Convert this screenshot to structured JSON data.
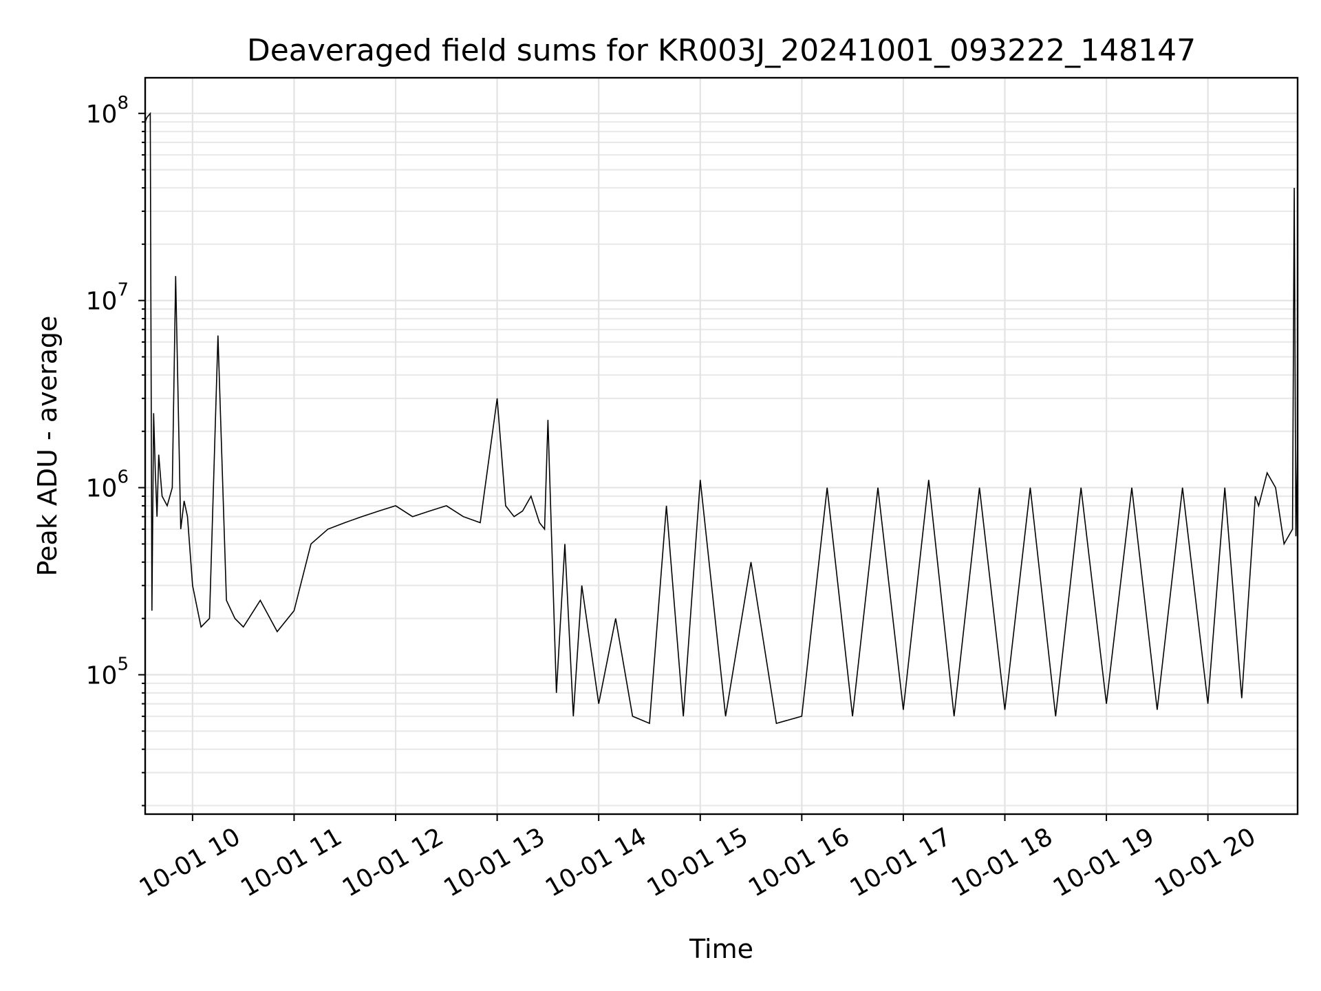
{
  "chart_data": {
    "type": "line",
    "title": "Deaveraged field sums for KR003J_20241001_093222_148147",
    "xlabel": "Time",
    "ylabel": "Peak ADU - average",
    "y_scale": "log",
    "grid": true,
    "grid_minor_y": true,
    "xlim": [
      "2024-10-01 09:32",
      "2024-10-01 20:53"
    ],
    "ylim": [
      18000,
      155000000
    ],
    "x_ticks": [
      "2024-10-01 10:00",
      "2024-10-01 11:00",
      "2024-10-01 12:00",
      "2024-10-01 13:00",
      "2024-10-01 14:00",
      "2024-10-01 15:00",
      "2024-10-01 16:00",
      "2024-10-01 17:00",
      "2024-10-01 18:00",
      "2024-10-01 19:00",
      "2024-10-01 20:00"
    ],
    "x_tick_labels": [
      "10-01 10",
      "10-01 11",
      "10-01 12",
      "10-01 13",
      "10-01 14",
      "10-01 15",
      "10-01 16",
      "10-01 17",
      "10-01 18",
      "10-01 19",
      "10-01 20"
    ],
    "y_ticks": [
      100000,
      1000000,
      10000000,
      100000000
    ],
    "y_tick_labels": [
      {
        "base": "10",
        "exp": "5"
      },
      {
        "base": "10",
        "exp": "6"
      },
      {
        "base": "10",
        "exp": "7"
      },
      {
        "base": "10",
        "exp": "8"
      }
    ],
    "line_color": "#000000",
    "series": [
      {
        "x": [
          "2024-10-01 09:32",
          "2024-10-01 09:33",
          "2024-10-01 09:35",
          "2024-10-01 09:36",
          "2024-10-01 09:37",
          "2024-10-01 09:38",
          "2024-10-01 09:39",
          "2024-10-01 09:40",
          "2024-10-01 09:42",
          "2024-10-01 09:45",
          "2024-10-01 09:48",
          "2024-10-01 09:50",
          "2024-10-01 09:53",
          "2024-10-01 09:55",
          "2024-10-01 09:57",
          "2024-10-01 10:00",
          "2024-10-01 10:05",
          "2024-10-01 10:10",
          "2024-10-01 10:15",
          "2024-10-01 10:20",
          "2024-10-01 10:25",
          "2024-10-01 10:30",
          "2024-10-01 10:40",
          "2024-10-01 10:50",
          "2024-10-01 11:00",
          "2024-10-01 11:10",
          "2024-10-01 11:20",
          "2024-10-01 11:30",
          "2024-10-01 11:40",
          "2024-10-01 11:50",
          "2024-10-01 12:00",
          "2024-10-01 12:10",
          "2024-10-01 12:20",
          "2024-10-01 12:30",
          "2024-10-01 12:40",
          "2024-10-01 12:50",
          "2024-10-01 13:00",
          "2024-10-01 13:05",
          "2024-10-01 13:10",
          "2024-10-01 13:15",
          "2024-10-01 13:20",
          "2024-10-01 13:25",
          "2024-10-01 13:28",
          "2024-10-01 13:30",
          "2024-10-01 13:35",
          "2024-10-01 13:40",
          "2024-10-01 13:45",
          "2024-10-01 13:50",
          "2024-10-01 14:00",
          "2024-10-01 14:10",
          "2024-10-01 14:20",
          "2024-10-01 14:30",
          "2024-10-01 14:40",
          "2024-10-01 14:50",
          "2024-10-01 15:00",
          "2024-10-01 15:15",
          "2024-10-01 15:30",
          "2024-10-01 15:45",
          "2024-10-01 16:00",
          "2024-10-01 16:15",
          "2024-10-01 16:30",
          "2024-10-01 16:45",
          "2024-10-01 17:00",
          "2024-10-01 17:15",
          "2024-10-01 17:30",
          "2024-10-01 17:45",
          "2024-10-01 18:00",
          "2024-10-01 18:15",
          "2024-10-01 18:30",
          "2024-10-01 18:45",
          "2024-10-01 19:00",
          "2024-10-01 19:15",
          "2024-10-01 19:30",
          "2024-10-01 19:45",
          "2024-10-01 20:00",
          "2024-10-01 20:10",
          "2024-10-01 20:20",
          "2024-10-01 20:28",
          "2024-10-01 20:30",
          "2024-10-01 20:35",
          "2024-10-01 20:40",
          "2024-10-01 20:45",
          "2024-10-01 20:50",
          "2024-10-01 20:51",
          "2024-10-01 20:52",
          "2024-10-01 20:53"
        ],
        "y": [
          90000000,
          95000000,
          100000000,
          220000,
          2500000,
          1200000,
          700000,
          1500000,
          900000,
          800000,
          1000000,
          13500000,
          600000,
          850000,
          700000,
          300000,
          180000,
          200000,
          6500000,
          250000,
          200000,
          180000,
          250000,
          170000,
          220000,
          500000,
          600000,
          650000,
          700000,
          750000,
          800000,
          700000,
          750000,
          800000,
          700000,
          650000,
          3000000,
          800000,
          700000,
          750000,
          900000,
          650000,
          600000,
          2300000,
          80000,
          500000,
          60000,
          300000,
          70000,
          200000,
          60000,
          55000,
          800000,
          60000,
          1100000,
          60000,
          400000,
          55000,
          60000,
          1000000,
          60000,
          1000000,
          65000,
          1100000,
          60000,
          1000000,
          65000,
          1000000,
          60000,
          1000000,
          70000,
          1000000,
          65000,
          1000000,
          70000,
          1000000,
          75000,
          900000,
          800000,
          1200000,
          1000000,
          500000,
          600000,
          40000000,
          550000,
          1800000
        ]
      }
    ]
  }
}
